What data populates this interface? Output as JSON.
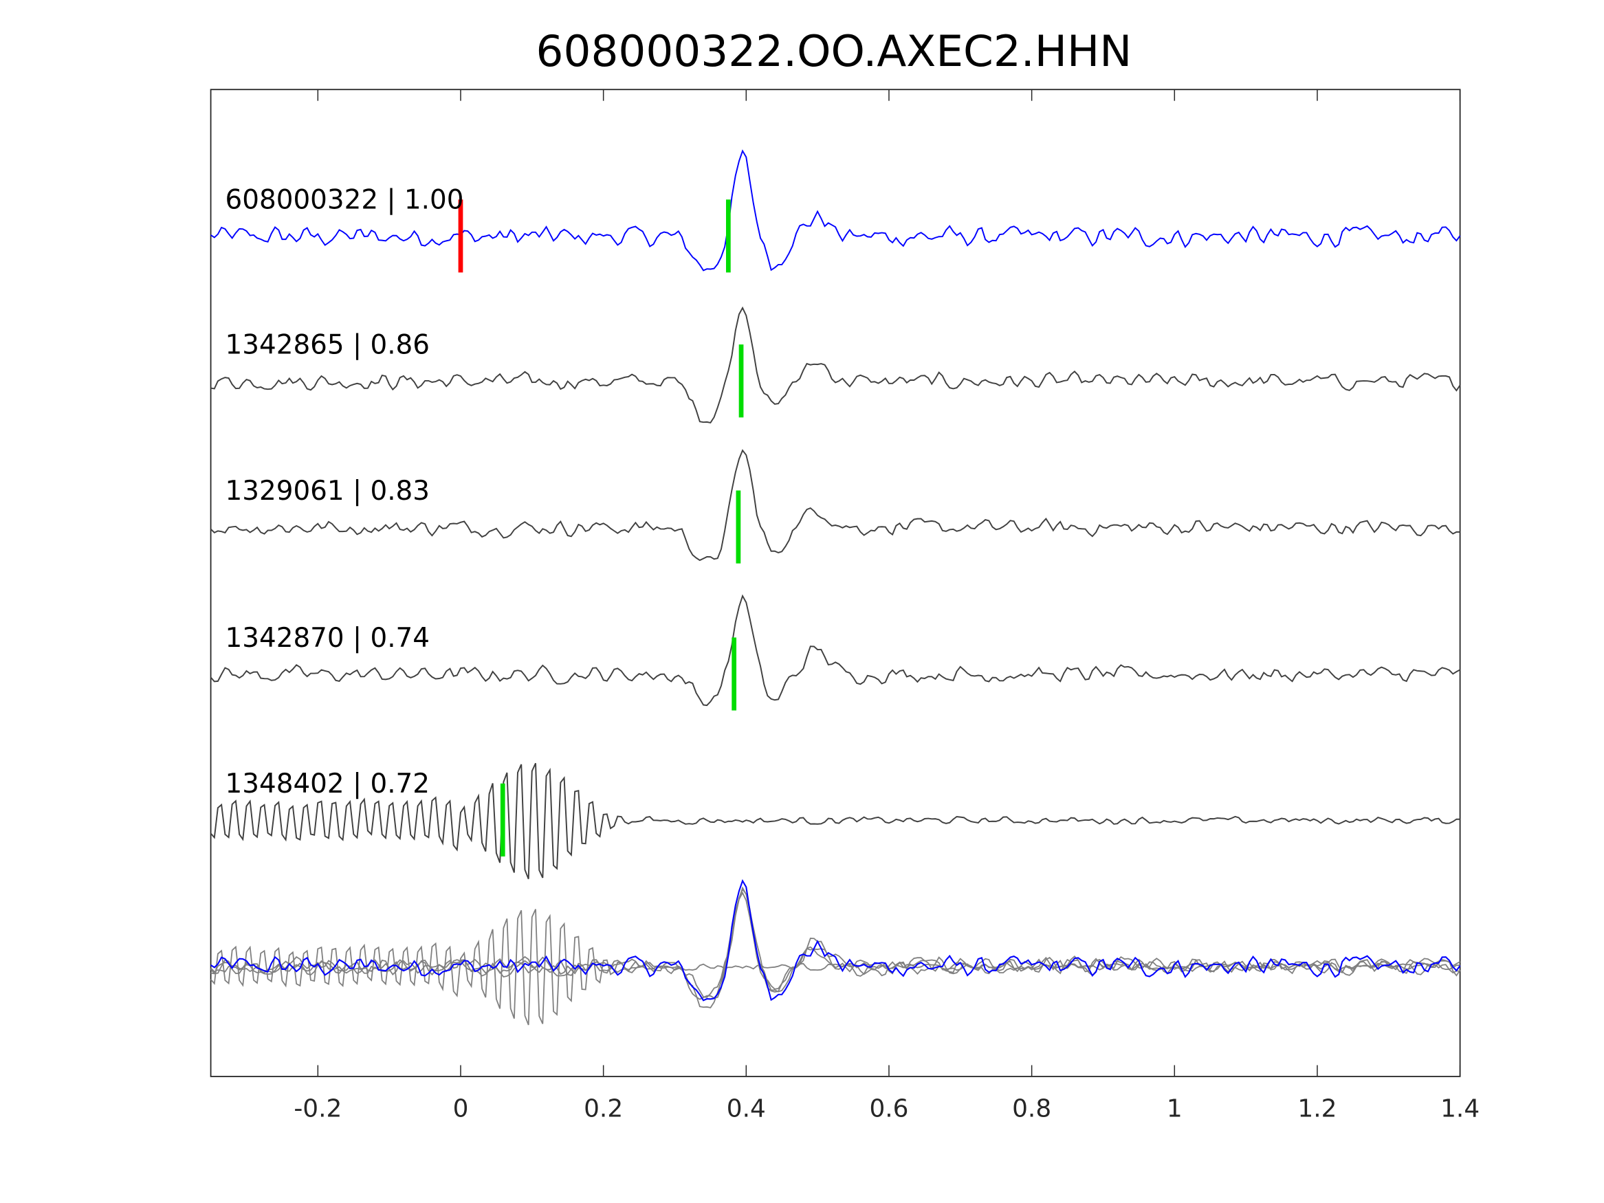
{
  "chart_data": {
    "type": "line",
    "title": "608000322.OO.AXEC2.HHN",
    "xlabel": "",
    "ylabel": "",
    "xlim": [
      -0.35,
      1.4
    ],
    "xticks": [
      "-0.2",
      "0",
      "0.2",
      "0.4",
      "0.6",
      "0.8",
      "1",
      "1.2",
      "1.4"
    ],
    "xtick_values": [
      -0.2,
      0,
      0.2,
      0.4,
      0.6,
      0.8,
      1,
      1.2,
      1.4
    ],
    "grid": false,
    "colors": {
      "template": "#0000ff",
      "trace": "#404040",
      "stack": "#808080",
      "pick": "#00dd00",
      "origin": "#ff0000",
      "axis": "#262626"
    },
    "series": [
      {
        "name": "608000322",
        "label": "608000322 | 1.00",
        "cc": 1.0,
        "pick_time": 0.375,
        "origin_time": 0.0,
        "peak_time": 0.395,
        "kind": "template"
      },
      {
        "name": "1342865",
        "label": "1342865 | 0.86",
        "cc": 0.86,
        "pick_time": 0.393,
        "peak_time": 0.397,
        "kind": "trace"
      },
      {
        "name": "1329061",
        "label": "1329061 | 0.83",
        "cc": 0.83,
        "pick_time": 0.389,
        "peak_time": 0.397,
        "kind": "trace"
      },
      {
        "name": "1342870",
        "label": "1342870 | 0.74",
        "cc": 0.74,
        "pick_time": 0.383,
        "peak_time": 0.397,
        "kind": "trace"
      },
      {
        "name": "1348402",
        "label": "1348402 | 0.72",
        "cc": 0.72,
        "pick_time": 0.059,
        "burst_center": 0.1,
        "kind": "burst"
      }
    ],
    "stack": {
      "name": "overlay",
      "kind": "overlay of all traces"
    }
  }
}
